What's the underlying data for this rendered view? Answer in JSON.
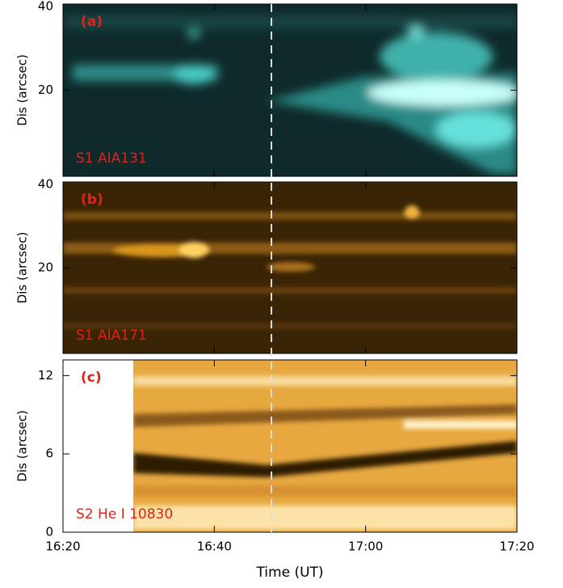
{
  "figure": {
    "x_label": "Time (UT)",
    "xticks": [
      "16:20",
      "16:40",
      "17:00",
      "17:20"
    ],
    "panels": [
      {
        "label": "(a)",
        "caption": "S1 AIA131",
        "y_label": "Dis (arcsec)",
        "ylim": [
          0,
          40
        ],
        "yticks": [
          20,
          40
        ]
      },
      {
        "label": "(b)",
        "caption": "S1 AIA171",
        "y_label": "Dis (arcsec)",
        "ylim": [
          0,
          40
        ],
        "yticks": [
          20,
          40
        ]
      },
      {
        "label": "(c)",
        "caption": "S2 He I 10830",
        "y_label": "Dis (arcsec)",
        "ylim": [
          0,
          13.2
        ],
        "yticks": [
          0,
          6,
          12
        ]
      }
    ]
  }
}
